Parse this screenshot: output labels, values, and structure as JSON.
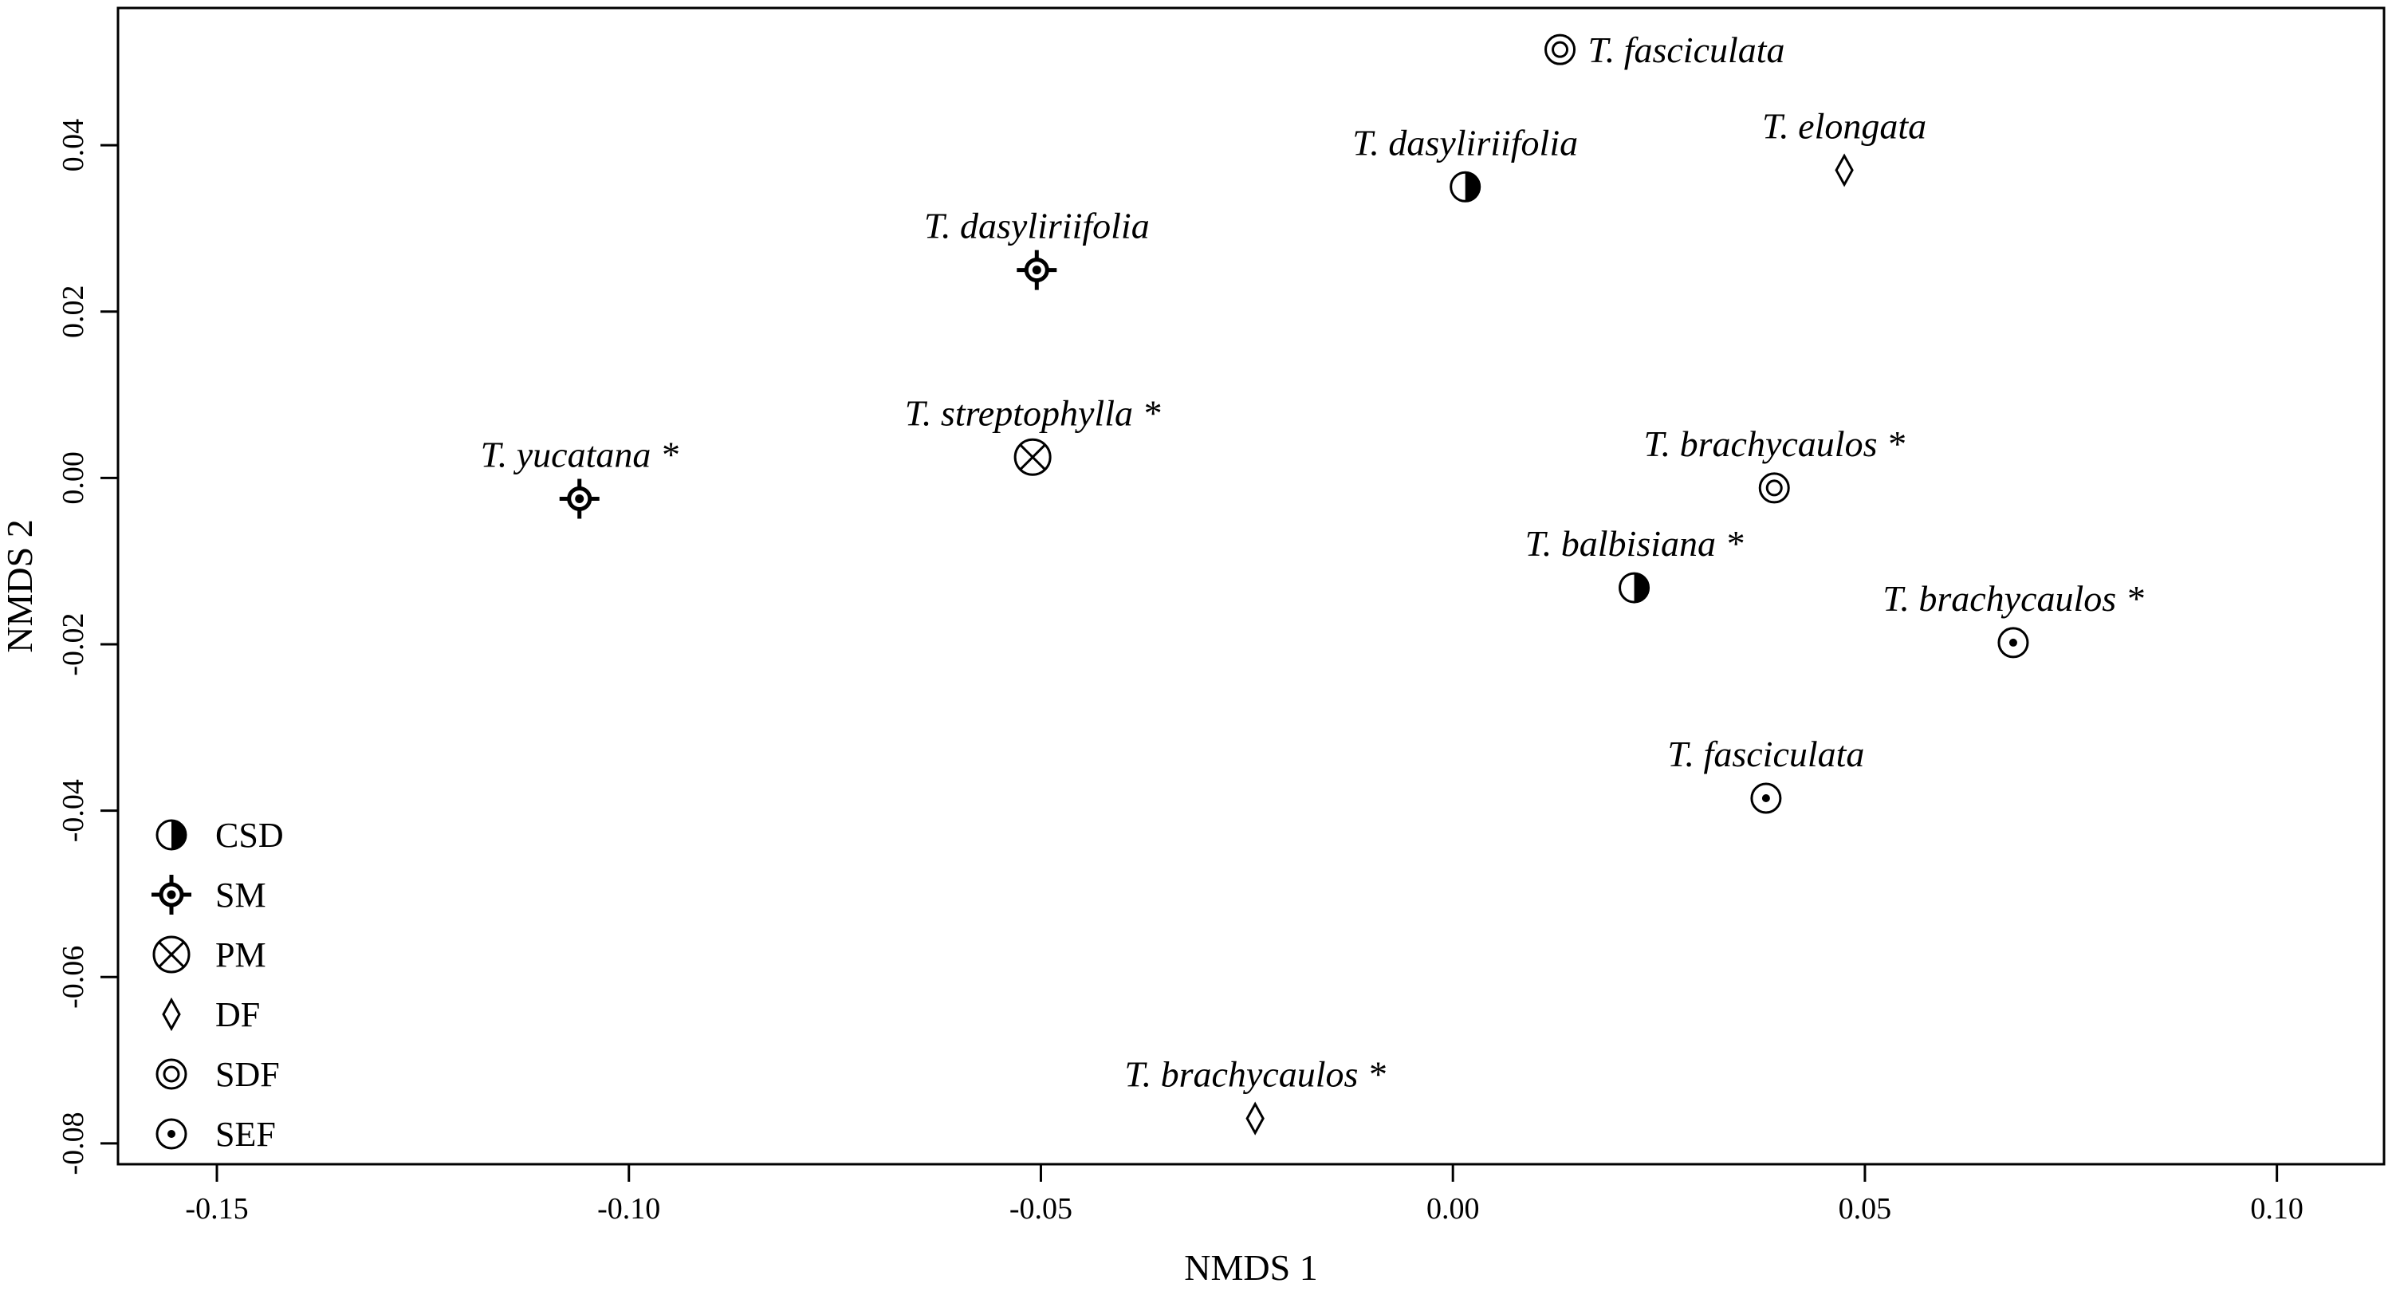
{
  "chart_data": {
    "type": "scatter",
    "xlabel": "NMDS 1",
    "ylabel": "NMDS 2",
    "xlim": [
      -0.162,
      0.113
    ],
    "ylim": [
      -0.0825,
      0.0565
    ],
    "xticks": [
      {
        "v": -0.15,
        "label": "-0.15"
      },
      {
        "v": -0.1,
        "label": "-0.10"
      },
      {
        "v": -0.05,
        "label": "-0.05"
      },
      {
        "v": 0.0,
        "label": "0.00"
      },
      {
        "v": 0.05,
        "label": "0.05"
      },
      {
        "v": 0.1,
        "label": "0.10"
      }
    ],
    "yticks": [
      {
        "v": 0.04,
        "label": "0.04"
      },
      {
        "v": 0.02,
        "label": "0.02"
      },
      {
        "v": 0.0,
        "label": "0.00"
      },
      {
        "v": -0.02,
        "label": "-0.02"
      },
      {
        "v": -0.04,
        "label": "-0.04"
      },
      {
        "v": -0.06,
        "label": "-0.06"
      },
      {
        "v": -0.08,
        "label": "-0.08"
      }
    ],
    "grid": false,
    "legend_position": "bottom-left",
    "legend": [
      {
        "key": "CSD",
        "label": "CSD"
      },
      {
        "key": "SM",
        "label": "SM"
      },
      {
        "key": "PM",
        "label": "PM"
      },
      {
        "key": "DF",
        "label": "DF"
      },
      {
        "key": "SDF",
        "label": "SDF"
      },
      {
        "key": "SEF",
        "label": "SEF"
      }
    ],
    "points": [
      {
        "x": 0.013,
        "y": 0.0515,
        "group": "SDF",
        "label": "T. fasciculata",
        "label_pos": "right"
      },
      {
        "x": 0.0475,
        "y": 0.037,
        "group": "DF",
        "label": "T. elongata",
        "label_pos": "above"
      },
      {
        "x": 0.0015,
        "y": 0.035,
        "group": "CSD",
        "label": "T. dasyliriifolia",
        "label_pos": "above"
      },
      {
        "x": -0.0505,
        "y": 0.025,
        "group": "SM",
        "label": "T. dasyliriifolia",
        "label_pos": "above"
      },
      {
        "x": -0.051,
        "y": 0.0025,
        "group": "PM",
        "label": "T. streptophylla *",
        "label_pos": "above"
      },
      {
        "x": -0.106,
        "y": -0.0025,
        "group": "SM",
        "label": "T. yucatana *",
        "label_pos": "above"
      },
      {
        "x": 0.039,
        "y": -0.0012,
        "group": "SDF",
        "label": "T. brachycaulos *",
        "label_pos": "above"
      },
      {
        "x": 0.022,
        "y": -0.0132,
        "group": "CSD",
        "label": "T. balbisiana *",
        "label_pos": "above"
      },
      {
        "x": 0.068,
        "y": -0.0198,
        "group": "SEF",
        "label": "T. brachycaulos *",
        "label_pos": "above"
      },
      {
        "x": 0.038,
        "y": -0.0385,
        "group": "SEF",
        "label": "T. fasciculata",
        "label_pos": "above"
      },
      {
        "x": -0.024,
        "y": -0.077,
        "group": "DF",
        "label": "T. brachycaulos *",
        "label_pos": "above"
      }
    ]
  }
}
